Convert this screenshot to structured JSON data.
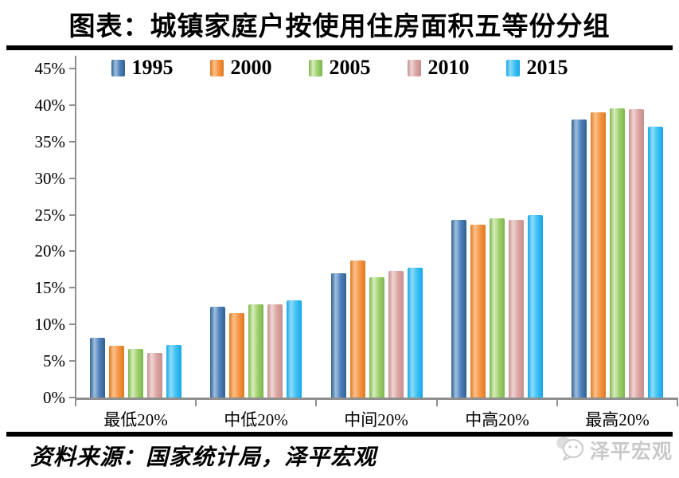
{
  "header": {
    "title": "图表：城镇家庭户按使用住房面积五等份分组"
  },
  "footer": {
    "source": "资料来源：国家统计局，泽平宏观",
    "watermark": "泽平宏观",
    "watermark_icon": "chat-bubbles-icon",
    "watermark_color": "#c9c9c9"
  },
  "colors": {
    "background": "#ffffff",
    "divider": "#000000",
    "axis": "#8f8f8f",
    "text": "#000000"
  },
  "chart_data": {
    "type": "bar",
    "title": "图表：城镇家庭户按使用住房面积五等份分组",
    "categories": [
      "最低20%",
      "中低20%",
      "中间20%",
      "中高20%",
      "最高20%"
    ],
    "series": [
      {
        "name": "1995",
        "values": [
          8.2,
          12.4,
          17.0,
          24.3,
          38.0
        ],
        "color": "#4f81bd",
        "color_light": "#9fc0de",
        "color_edge": "#31618f"
      },
      {
        "name": "2000",
        "values": [
          7.1,
          11.6,
          18.7,
          23.6,
          39.0
        ],
        "color": "#f79646",
        "color_light": "#fbc189",
        "color_edge": "#dd7a22"
      },
      {
        "name": "2005",
        "values": [
          6.7,
          12.8,
          16.4,
          24.5,
          39.5
        ],
        "color": "#9fd06e",
        "color_light": "#d8edbd",
        "color_edge": "#7db54d"
      },
      {
        "name": "2010",
        "values": [
          6.1,
          12.7,
          17.3,
          24.3,
          39.4
        ],
        "color": "#dba5a3",
        "color_light": "#efd6d4",
        "color_edge": "#c68f8d"
      },
      {
        "name": "2015",
        "values": [
          7.2,
          13.3,
          17.8,
          24.9,
          37.0
        ],
        "color": "#3fc1f4",
        "color_light": "#8edcf9",
        "color_edge": "#17a7e8"
      }
    ],
    "xlabel": "",
    "ylabel": "",
    "ylim": [
      0,
      45
    ],
    "ytick_step": 5,
    "ytick_format": "{v}%",
    "legend_position": "top",
    "grid": false
  }
}
